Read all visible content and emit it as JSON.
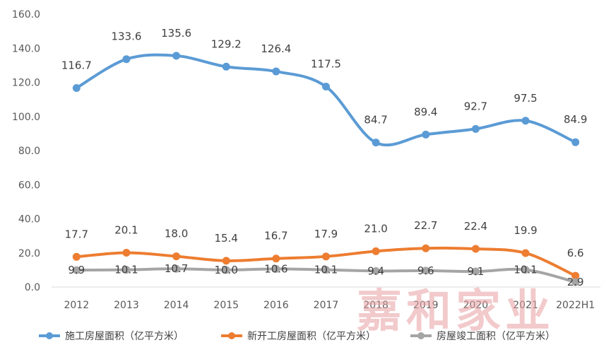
{
  "chart_data": {
    "type": "line",
    "categories": [
      "2012",
      "2013",
      "2014",
      "2015",
      "2016",
      "2017",
      "2018",
      "2019",
      "2020",
      "2021",
      "2022H1"
    ],
    "series": [
      {
        "name": "施工房屋面积（亿平方米）",
        "color": "#5b9bd5",
        "values": [
          116.7,
          133.6,
          135.6,
          129.2,
          126.4,
          117.5,
          84.7,
          89.4,
          92.7,
          97.5,
          84.9
        ],
        "labels": [
          "116.7",
          "133.6",
          "135.6",
          "129.2",
          "126.4",
          "117.5",
          "84.7",
          "89.4",
          "92.7",
          "97.5",
          "84.9"
        ]
      },
      {
        "name": "新开工房屋面积（亿平方米）",
        "color": "#ed7d31",
        "values": [
          17.7,
          20.1,
          18.0,
          15.4,
          16.7,
          17.9,
          21.0,
          22.7,
          22.4,
          19.9,
          6.6
        ],
        "labels": [
          "17.7",
          "20.1",
          "18.0",
          "15.4",
          "16.7",
          "17.9",
          "21.0",
          "22.7",
          "22.4",
          "19.9",
          "6.6"
        ]
      },
      {
        "name": "房屋竣工面积（亿平方米）",
        "color": "#a5a5a5",
        "values": [
          9.9,
          10.1,
          10.7,
          10.0,
          10.6,
          10.1,
          9.4,
          9.6,
          9.1,
          10.1,
          2.9
        ],
        "labels": [
          "9.9",
          "10.1",
          "10.7",
          "10.0",
          "10.6",
          "10.1",
          "9.4",
          "9.6",
          "9.1",
          "10.1",
          "2.9"
        ]
      }
    ],
    "ylim": [
      0,
      160
    ],
    "yticks": [
      "0.0",
      "20.0",
      "40.0",
      "60.0",
      "80.0",
      "100.0",
      "120.0",
      "140.0",
      "160.0"
    ],
    "grid": false,
    "legend_position": "bottom",
    "smooth": true
  },
  "watermark": "嘉和家业"
}
